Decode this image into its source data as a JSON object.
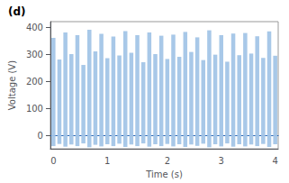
{
  "chart_data": {
    "type": "bar",
    "title": "(d)",
    "xlabel": "Time (s)",
    "ylabel": "Voltage (V)",
    "categories": [
      "0",
      null,
      null,
      null,
      null,
      null,
      null,
      null,
      null,
      "1",
      null,
      null,
      null,
      null,
      null,
      null,
      null,
      null,
      null,
      "2",
      null,
      null,
      null,
      null,
      null,
      null,
      null,
      null,
      "3",
      null,
      null,
      null,
      null,
      null,
      null,
      null,
      null,
      "4"
    ],
    "series": [
      {
        "color": "#a8c8e8",
        "values": [
          360,
          280,
          380,
          300,
          370,
          260,
          390,
          310,
          375,
          285,
          365,
          295,
          385,
          305,
          370,
          270,
          380,
          300,
          368,
          282,
          372,
          290,
          382,
          308,
          362,
          278,
          388,
          298,
          370,
          272,
          376,
          296,
          378,
          302,
          366,
          286,
          384,
          294
        ]
      },
      {
        "color": "#a8c8e8",
        "values": [
          -40,
          -32,
          -42,
          -34,
          -40,
          -30,
          -44,
          -35,
          -41,
          -33,
          -40,
          -31,
          -43,
          -34,
          -40,
          -30,
          -42,
          -33,
          -40,
          -32,
          -41,
          -33,
          -43,
          -34,
          -39,
          -31,
          -44,
          -33,
          -41,
          -30,
          -42,
          -33,
          -41,
          -34,
          -40,
          -32,
          -43,
          -33
        ]
      }
    ],
    "ylim": [
      -50,
      420
    ],
    "yticks": [
      0,
      100,
      200,
      300,
      400
    ],
    "grid": false
  }
}
